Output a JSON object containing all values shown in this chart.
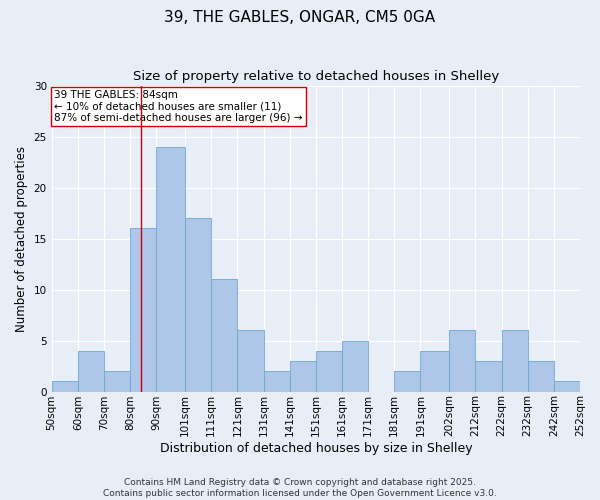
{
  "title_line1": "39, THE GABLES, ONGAR, CM5 0GA",
  "title_line2": "Size of property relative to detached houses in Shelley",
  "xlabel": "Distribution of detached houses by size in Shelley",
  "ylabel": "Number of detached properties",
  "bar_labels": [
    "50sqm",
    "60sqm",
    "70sqm",
    "80sqm",
    "90sqm",
    "101sqm",
    "111sqm",
    "121sqm",
    "131sqm",
    "141sqm",
    "151sqm",
    "161sqm",
    "171sqm",
    "181sqm",
    "191sqm",
    "202sqm",
    "212sqm",
    "222sqm",
    "232sqm",
    "242sqm",
    "252sqm"
  ],
  "bar_values": [
    1,
    4,
    2,
    16,
    24,
    17,
    11,
    6,
    2,
    3,
    4,
    5,
    0,
    2,
    4,
    6,
    3,
    6,
    3,
    1,
    0
  ],
  "bar_color": "#aec6e8",
  "bar_edgecolor": "#6aaad4",
  "vline_x": 84,
  "bin_edges": [
    50,
    60,
    70,
    80,
    90,
    101,
    111,
    121,
    131,
    141,
    151,
    161,
    171,
    181,
    191,
    202,
    212,
    222,
    232,
    242,
    252
  ],
  "annotation_text": "39 THE GABLES: 84sqm\n← 10% of detached houses are smaller (11)\n87% of semi-detached houses are larger (96) →",
  "annotation_box_color": "#ffffff",
  "annotation_box_edgecolor": "#cc0000",
  "vline_color": "#cc0000",
  "ylim": [
    0,
    30
  ],
  "yticks": [
    0,
    5,
    10,
    15,
    20,
    25,
    30
  ],
  "background_color": "#e8eef8",
  "grid_color": "#ffffff",
  "footnote": "Contains HM Land Registry data © Crown copyright and database right 2025.\nContains public sector information licensed under the Open Government Licence v3.0.",
  "title_fontsize": 11,
  "subtitle_fontsize": 9.5,
  "axis_label_fontsize": 8.5,
  "tick_fontsize": 7.5,
  "annotation_fontsize": 7.5,
  "footnote_fontsize": 6.5
}
